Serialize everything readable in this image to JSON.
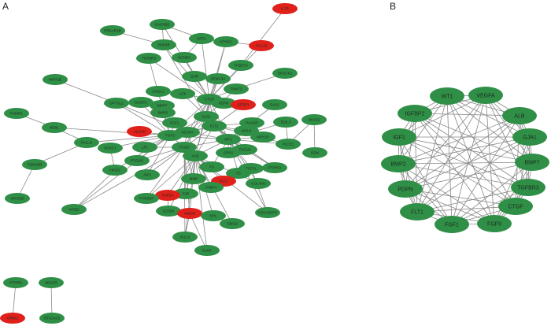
{
  "panels": [
    {
      "label": "A",
      "nodes": [
        {
          "label": "IL7R",
          "color": "#e0201b"
        },
        {
          "label": "CACNB2",
          "color": "#2f8f46"
        },
        {
          "label": "PRKAR2B",
          "color": "#2f8f46"
        },
        {
          "label": "SPP1",
          "color": "#2f8f46"
        },
        {
          "label": "NTNG1",
          "color": "#2f8f46"
        },
        {
          "label": "CCL19",
          "color": "#e0201b"
        },
        {
          "label": "PDE4B",
          "color": "#2f8f46"
        },
        {
          "label": "KCND3",
          "color": "#2f8f46"
        },
        {
          "label": "TGFBR3",
          "color": "#2f8f46"
        },
        {
          "label": "THSD7A",
          "color": "#2f8f46"
        },
        {
          "label": "MAP1B",
          "color": "#2f8f46"
        },
        {
          "label": "GHR",
          "color": "#2f8f46"
        },
        {
          "label": "SEMA3A",
          "color": "#2f8f46"
        },
        {
          "label": "SPOCK1",
          "color": "#2f8f46"
        },
        {
          "label": "TNNT2",
          "color": "#2f8f46"
        },
        {
          "label": "CHGL1",
          "color": "#2f8f46"
        },
        {
          "label": "LOX",
          "color": "#2f8f46"
        },
        {
          "label": "CTGF",
          "color": "#2f8f46"
        },
        {
          "label": "DPYSL1",
          "color": "#2f8f46"
        },
        {
          "label": "DUSP1",
          "color": "#2f8f46"
        },
        {
          "label": "BMP7",
          "color": "#2f8f46"
        },
        {
          "label": "PDPN",
          "color": "#2f8f46"
        },
        {
          "label": "SFRP1",
          "color": "#e0201b"
        },
        {
          "label": "GAS1",
          "color": "#2f8f46"
        },
        {
          "label": "PAMR1",
          "color": "#2f8f46"
        },
        {
          "label": "BMP2",
          "color": "#2f8f46"
        },
        {
          "label": "GJA1",
          "color": "#2f8f46"
        },
        {
          "label": "EDIL3",
          "color": "#2f8f46"
        },
        {
          "label": "MAGI2",
          "color": "#2f8f46"
        },
        {
          "label": "NEBL",
          "color": "#2f8f46"
        },
        {
          "label": "FGF1",
          "color": "#2f8f46"
        },
        {
          "label": "FLT1",
          "color": "#2f8f46"
        },
        {
          "label": "PLAUR",
          "color": "#2f8f46"
        },
        {
          "label": "ALOX5",
          "color": "#e0201b"
        },
        {
          "label": "VEGFA",
          "color": "#2f8f46"
        },
        {
          "label": "FGF2",
          "color": "#2f8f46"
        },
        {
          "label": "MYL9",
          "color": "#2f8f46"
        },
        {
          "label": "NPY1R",
          "color": "#2f8f46"
        },
        {
          "label": "WT1",
          "color": "#2f8f46"
        },
        {
          "label": "PALLD",
          "color": "#2f8f46"
        },
        {
          "label": "PLCE1",
          "color": "#2f8f46"
        },
        {
          "label": "FOXC1",
          "color": "#2f8f46"
        },
        {
          "label": "LPL",
          "color": "#2f8f46"
        },
        {
          "label": "ITGB3",
          "color": "#2f8f46"
        },
        {
          "label": "TAGLN",
          "color": "#2f8f46"
        },
        {
          "label": "CRY2",
          "color": "#2f8f46"
        },
        {
          "label": "DDN",
          "color": "#2f8f46"
        },
        {
          "label": "ALB",
          "color": "#2f8f46"
        },
        {
          "label": "PTGDS",
          "color": "#2f8f46"
        },
        {
          "label": "CDKN2B",
          "color": "#2f8f46"
        },
        {
          "label": "F3",
          "color": "#2f8f46"
        },
        {
          "label": "TCF21",
          "color": "#2f8f46"
        },
        {
          "label": "PTPRO",
          "color": "#2f8f46"
        },
        {
          "label": "HPGD",
          "color": "#2f8f46"
        },
        {
          "label": "AIF1",
          "color": "#2f8f46"
        },
        {
          "label": "F5",
          "color": "#2f8f46"
        },
        {
          "label": "MME",
          "color": "#2f8f46"
        },
        {
          "label": "TAC1",
          "color": "#e0201b"
        },
        {
          "label": "COL4A5",
          "color": "#2f8f46"
        },
        {
          "label": "FABP4",
          "color": "#2f8f46"
        },
        {
          "label": "F2R",
          "color": "#2f8f46"
        },
        {
          "label": "TOP2A",
          "color": "#e0201b"
        },
        {
          "label": "TYROBP",
          "color": "#2f8f46"
        },
        {
          "label": "MYO1B",
          "color": "#2f8f46"
        },
        {
          "label": "APOD",
          "color": "#2f8f46"
        },
        {
          "label": "CD200",
          "color": "#2f8f46"
        },
        {
          "label": "UMOD",
          "color": "#e0201b"
        },
        {
          "label": "NPL",
          "color": "#2f8f46"
        },
        {
          "label": "CDC42EP3",
          "color": "#2f8f46"
        },
        {
          "label": "GNG2",
          "color": "#2f8f46"
        },
        {
          "label": "IGLL5",
          "color": "#2f8f46"
        },
        {
          "label": "KLK6",
          "color": "#2f8f46"
        },
        {
          "label": "PTPRD",
          "color": "#2f8f46"
        },
        {
          "label": "MGAT5",
          "color": "#2f8f46"
        },
        {
          "label": "GRIK2",
          "color": "#e0201b"
        },
        {
          "label": "ST3GAL5",
          "color": "#2f8f46"
        }
      ]
    },
    {
      "label": "B",
      "nodes": [
        {
          "label": "WT1",
          "color": "#2f8f46"
        },
        {
          "label": "VEGFA",
          "color": "#2f8f46"
        },
        {
          "label": "ALB",
          "color": "#2f8f46"
        },
        {
          "label": "GJA1",
          "color": "#2f8f46"
        },
        {
          "label": "BMP7",
          "color": "#2f8f46"
        },
        {
          "label": "TGFBR3",
          "color": "#2f8f46"
        },
        {
          "label": "CTGF",
          "color": "#2f8f46"
        },
        {
          "label": "FGF9",
          "color": "#2f8f46"
        },
        {
          "label": "FGF1",
          "color": "#2f8f46"
        },
        {
          "label": "FLT1",
          "color": "#2f8f46"
        },
        {
          "label": "PDPN",
          "color": "#2f8f46"
        },
        {
          "label": "BMP2",
          "color": "#2f8f46"
        },
        {
          "label": "IGF1",
          "color": "#2f8f46"
        },
        {
          "label": "IGFBP2",
          "color": "#2f8f46"
        }
      ]
    }
  ]
}
